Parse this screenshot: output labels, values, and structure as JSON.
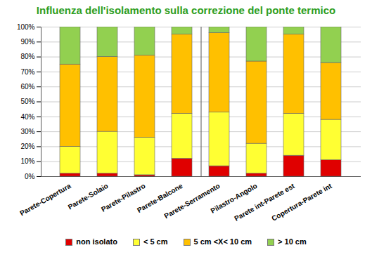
{
  "chart_data": {
    "type": "bar",
    "stacked": true,
    "title": "Influenza dell'isolamento sulla correzione del ponte termico",
    "categories": [
      "Parete-Copertura",
      "Parete-Solaio",
      "Parete-Pilastro",
      "Parete-Balcone",
      "Parete-Serramento",
      "Pilastro-Angolo",
      "Parete int-Parete est",
      "Copertura-Parete int"
    ],
    "series": [
      {
        "name": "non isolato",
        "color": "#e00000",
        "values": [
          2,
          2,
          1,
          12,
          7,
          2,
          14,
          11
        ]
      },
      {
        "name": "< 5 cm",
        "color": "#ffff33",
        "values": [
          18,
          28,
          25,
          30,
          36,
          20,
          28,
          27
        ]
      },
      {
        "name": "5 cm <X< 10 cm",
        "color": "#ffc000",
        "values": [
          55,
          50,
          55,
          53,
          53,
          55,
          53,
          38
        ]
      },
      {
        "name": "> 10 cm",
        "color": "#92d050",
        "values": [
          25,
          20,
          19,
          5,
          4,
          23,
          5,
          24
        ]
      }
    ],
    "ylim": [
      0,
      100
    ],
    "yticks": [
      {
        "value": 0,
        "label": "0%"
      },
      {
        "value": 10,
        "label": "10%"
      },
      {
        "value": 20,
        "label": "20%"
      },
      {
        "value": 30,
        "label": "30%"
      },
      {
        "value": 40,
        "label": "40%"
      },
      {
        "value": 50,
        "label": "50%"
      },
      {
        "value": 60,
        "label": "60%"
      },
      {
        "value": 70,
        "label": "70%"
      },
      {
        "value": 80,
        "label": "80%"
      },
      {
        "value": 90,
        "label": "90%"
      },
      {
        "value": 100,
        "label": "100%"
      }
    ],
    "grid": true,
    "legend": "bottom"
  }
}
